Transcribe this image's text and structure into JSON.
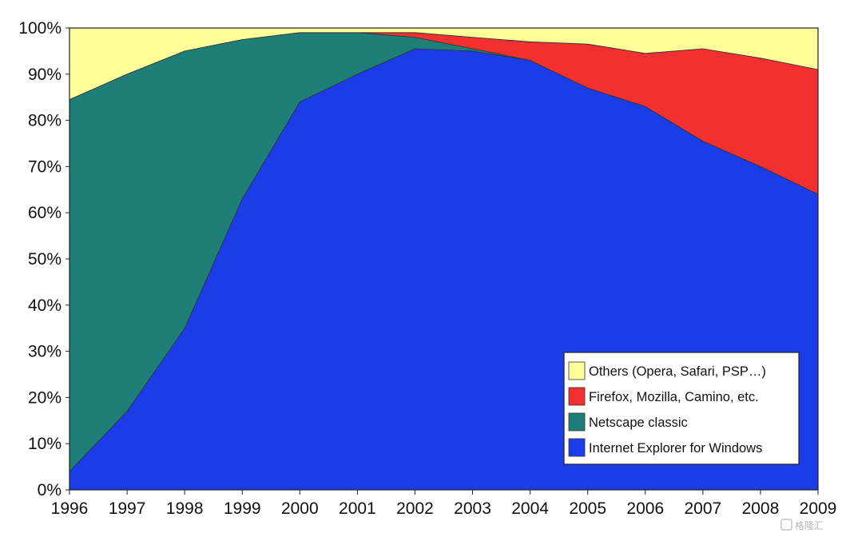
{
  "chart_data": {
    "type": "area",
    "stacking": "percent",
    "x": [
      1996,
      1997,
      1998,
      1999,
      2000,
      2001,
      2002,
      2003,
      2004,
      2005,
      2006,
      2007,
      2008,
      2009
    ],
    "x_tick_labels": [
      "1996",
      "1997",
      "1998",
      "1999",
      "2000",
      "2001",
      "2002",
      "2003",
      "2004",
      "2005",
      "2006",
      "2007",
      "2008",
      "2009"
    ],
    "y_tick_labels": [
      "0%",
      "10%",
      "20%",
      "30%",
      "40%",
      "50%",
      "60%",
      "70%",
      "80%",
      "90%",
      "100%"
    ],
    "ylim": [
      0,
      100
    ],
    "grid": false,
    "legend_position": "bottom-right",
    "series": [
      {
        "name": "Internet Explorer for Windows",
        "color": "#1a3de8",
        "values": [
          4,
          17,
          35,
          63,
          84,
          90,
          95.5,
          95,
          93,
          87,
          83,
          75.5,
          70,
          64
        ]
      },
      {
        "name": "Netscape classic",
        "color": "#1e7f78",
        "values": [
          80.5,
          73,
          60,
          34.5,
          15,
          9,
          2.5,
          0.5,
          0,
          0,
          0,
          0,
          0,
          0
        ]
      },
      {
        "name": "Firefox, Mozilla, Camino, etc.",
        "color": "#f23030",
        "values": [
          0,
          0,
          0,
          0,
          0,
          0,
          1,
          2.5,
          4,
          9.5,
          11.5,
          20,
          23.5,
          27
        ]
      },
      {
        "name": "Others (Opera, Safari, PSP…)",
        "color": "#ffff99",
        "values": [
          15.5,
          10,
          5,
          2.5,
          1,
          1,
          1,
          2,
          3,
          3.5,
          5.5,
          4.5,
          6.5,
          9
        ]
      }
    ],
    "legend_order": [
      "Others (Opera, Safari, PSP…)",
      "Firefox, Mozilla, Camino, etc.",
      "Netscape classic",
      "Internet Explorer for Windows"
    ]
  },
  "watermark": "格隆汇"
}
